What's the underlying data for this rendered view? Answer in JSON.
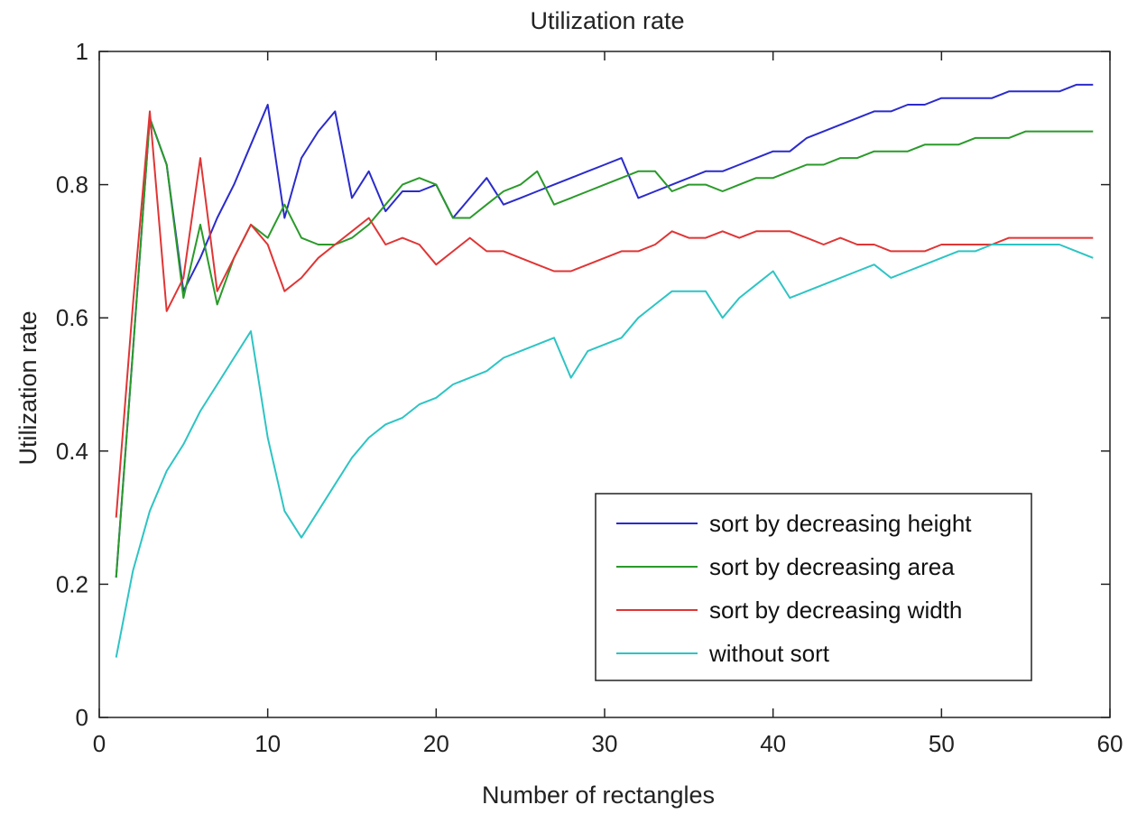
{
  "chart_data": {
    "type": "line",
    "title": "Utilization rate",
    "xlabel": "Number of rectangles",
    "ylabel": "Utilization rate",
    "xlim": [
      0,
      60
    ],
    "ylim": [
      0,
      1
    ],
    "xticks": [
      0,
      10,
      20,
      30,
      40,
      50,
      60
    ],
    "yticks": [
      0,
      0.2,
      0.4,
      0.6,
      0.8,
      1
    ],
    "ytick_labels": [
      "0",
      "0.2",
      "0.4",
      "0.6",
      "0.8",
      "1"
    ],
    "grid": false,
    "legend_position": "bottom-right",
    "series": [
      {
        "name": "sort by decreasing height",
        "color": "#2b2bcc",
        "x": [
          1,
          2,
          3,
          4,
          5,
          6,
          7,
          8,
          9,
          10,
          11,
          12,
          13,
          14,
          15,
          16,
          17,
          18,
          19,
          20,
          21,
          22,
          23,
          24,
          25,
          26,
          27,
          28,
          29,
          30,
          31,
          32,
          33,
          34,
          35,
          36,
          37,
          38,
          39,
          40,
          41,
          42,
          43,
          44,
          45,
          46,
          47,
          48,
          49,
          50,
          51,
          52,
          53,
          54,
          55,
          56,
          57,
          58,
          59
        ],
        "y": [
          0.21,
          0.55,
          0.9,
          0.83,
          0.64,
          0.69,
          0.75,
          0.8,
          0.86,
          0.92,
          0.75,
          0.84,
          0.88,
          0.91,
          0.78,
          0.82,
          0.76,
          0.79,
          0.79,
          0.8,
          0.75,
          0.78,
          0.81,
          0.77,
          0.78,
          0.79,
          0.8,
          0.81,
          0.82,
          0.83,
          0.84,
          0.78,
          0.79,
          0.8,
          0.81,
          0.82,
          0.82,
          0.83,
          0.84,
          0.85,
          0.85,
          0.87,
          0.88,
          0.89,
          0.9,
          0.91,
          0.91,
          0.92,
          0.92,
          0.93,
          0.93,
          0.93,
          0.93,
          0.94,
          0.94,
          0.94,
          0.94,
          0.95,
          0.95
        ]
      },
      {
        "name": "sort by decreasing area",
        "color": "#2a9a2a",
        "x": [
          1,
          2,
          3,
          4,
          5,
          6,
          7,
          8,
          9,
          10,
          11,
          12,
          13,
          14,
          15,
          16,
          17,
          18,
          19,
          20,
          21,
          22,
          23,
          24,
          25,
          26,
          27,
          28,
          29,
          30,
          31,
          32,
          33,
          34,
          35,
          36,
          37,
          38,
          39,
          40,
          41,
          42,
          43,
          44,
          45,
          46,
          47,
          48,
          49,
          50,
          51,
          52,
          53,
          54,
          55,
          56,
          57,
          58,
          59
        ],
        "y": [
          0.21,
          0.55,
          0.9,
          0.83,
          0.63,
          0.74,
          0.62,
          0.69,
          0.74,
          0.72,
          0.77,
          0.72,
          0.71,
          0.71,
          0.72,
          0.74,
          0.77,
          0.8,
          0.81,
          0.8,
          0.75,
          0.75,
          0.77,
          0.79,
          0.8,
          0.82,
          0.77,
          0.78,
          0.79,
          0.8,
          0.81,
          0.82,
          0.82,
          0.79,
          0.8,
          0.8,
          0.79,
          0.8,
          0.81,
          0.81,
          0.82,
          0.83,
          0.83,
          0.84,
          0.84,
          0.85,
          0.85,
          0.85,
          0.86,
          0.86,
          0.86,
          0.87,
          0.87,
          0.87,
          0.88,
          0.88,
          0.88,
          0.88,
          0.88
        ]
      },
      {
        "name": "sort by decreasing width",
        "color": "#e03535",
        "x": [
          1,
          2,
          3,
          4,
          5,
          6,
          7,
          8,
          9,
          10,
          11,
          12,
          13,
          14,
          15,
          16,
          17,
          18,
          19,
          20,
          21,
          22,
          23,
          24,
          25,
          26,
          27,
          28,
          29,
          30,
          31,
          32,
          33,
          34,
          35,
          36,
          37,
          38,
          39,
          40,
          41,
          42,
          43,
          44,
          45,
          46,
          47,
          48,
          49,
          50,
          51,
          52,
          53,
          54,
          55,
          56,
          57,
          58,
          59
        ],
        "y": [
          0.3,
          0.62,
          0.91,
          0.61,
          0.66,
          0.84,
          0.64,
          0.69,
          0.74,
          0.71,
          0.64,
          0.66,
          0.69,
          0.71,
          0.73,
          0.75,
          0.71,
          0.72,
          0.71,
          0.68,
          0.7,
          0.72,
          0.7,
          0.7,
          0.69,
          0.68,
          0.67,
          0.67,
          0.68,
          0.69,
          0.7,
          0.7,
          0.71,
          0.73,
          0.72,
          0.72,
          0.73,
          0.72,
          0.73,
          0.73,
          0.73,
          0.72,
          0.71,
          0.72,
          0.71,
          0.71,
          0.7,
          0.7,
          0.7,
          0.71,
          0.71,
          0.71,
          0.71,
          0.72,
          0.72,
          0.72,
          0.72,
          0.72,
          0.72
        ]
      },
      {
        "name": "without sort",
        "color": "#2ec4c4",
        "x": [
          1,
          2,
          3,
          4,
          5,
          6,
          7,
          8,
          9,
          10,
          11,
          12,
          13,
          14,
          15,
          16,
          17,
          18,
          19,
          20,
          21,
          22,
          23,
          24,
          25,
          26,
          27,
          28,
          29,
          30,
          31,
          32,
          33,
          34,
          35,
          36,
          37,
          38,
          39,
          40,
          41,
          42,
          43,
          44,
          45,
          46,
          47,
          48,
          49,
          50,
          51,
          52,
          53,
          54,
          55,
          56,
          57,
          58,
          59
        ],
        "y": [
          0.09,
          0.22,
          0.31,
          0.37,
          0.41,
          0.46,
          0.5,
          0.54,
          0.58,
          0.42,
          0.31,
          0.27,
          0.31,
          0.35,
          0.39,
          0.42,
          0.44,
          0.45,
          0.47,
          0.48,
          0.5,
          0.51,
          0.52,
          0.54,
          0.55,
          0.56,
          0.57,
          0.51,
          0.55,
          0.56,
          0.57,
          0.6,
          0.62,
          0.64,
          0.64,
          0.64,
          0.6,
          0.63,
          0.65,
          0.67,
          0.63,
          0.64,
          0.65,
          0.66,
          0.67,
          0.68,
          0.66,
          0.67,
          0.68,
          0.69,
          0.7,
          0.7,
          0.71,
          0.71,
          0.71,
          0.71,
          0.71,
          0.7,
          0.69
        ]
      }
    ]
  }
}
